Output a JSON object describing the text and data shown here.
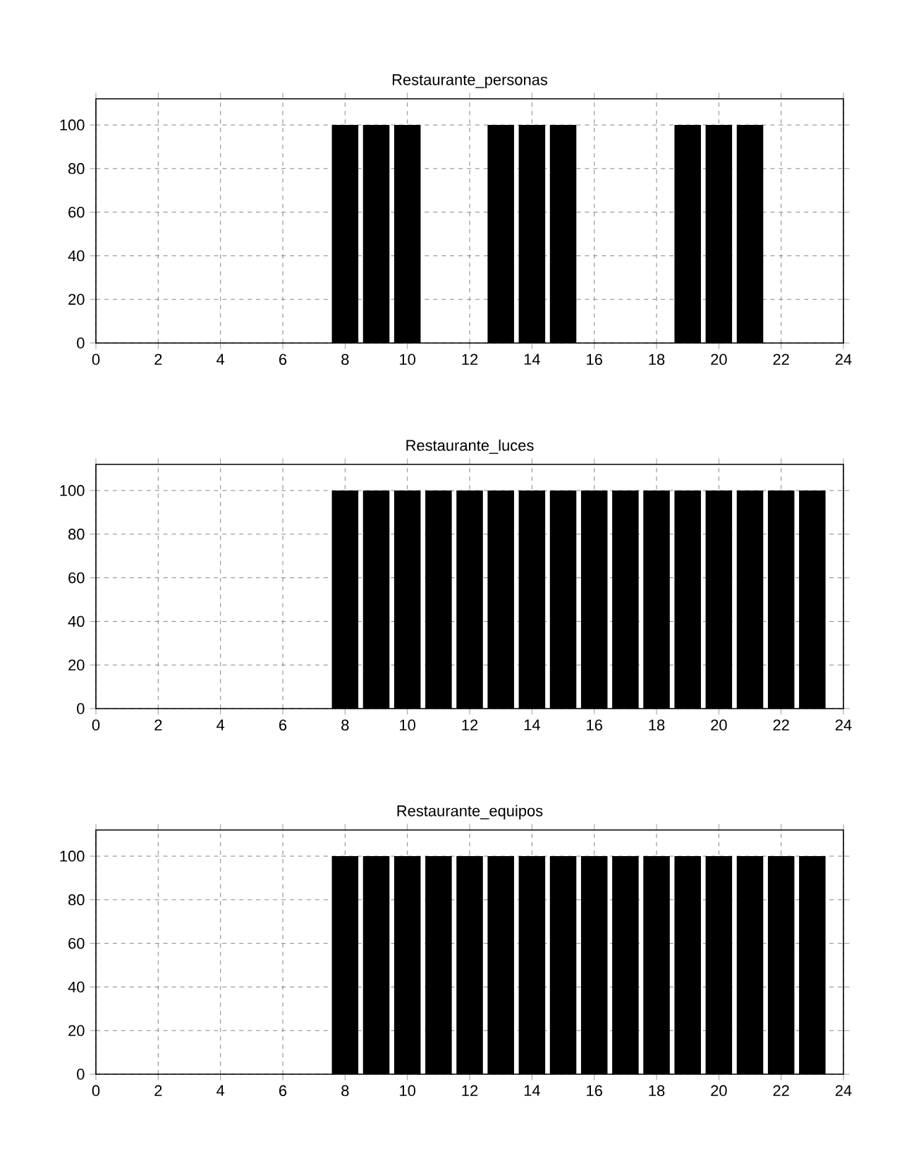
{
  "chart_data": [
    {
      "type": "bar",
      "title": "Restaurante_personas",
      "x": [
        8,
        9,
        10,
        13,
        14,
        15,
        19,
        20,
        21
      ],
      "values": [
        100,
        100,
        100,
        100,
        100,
        100,
        100,
        100,
        100
      ],
      "color": "#000000",
      "xlim": [
        0,
        24
      ],
      "xticks": [
        0,
        2,
        4,
        6,
        8,
        10,
        12,
        14,
        16,
        18,
        20,
        22,
        24
      ],
      "ylim": [
        0,
        112
      ],
      "yticks": [
        0,
        20,
        40,
        60,
        80,
        100
      ],
      "grid": true
    },
    {
      "type": "bar",
      "title": "Restaurante_luces",
      "x": [
        8,
        9,
        10,
        11,
        12,
        13,
        14,
        15,
        16,
        17,
        18,
        19,
        20,
        21,
        22,
        23
      ],
      "values": [
        100,
        100,
        100,
        100,
        100,
        100,
        100,
        100,
        100,
        100,
        100,
        100,
        100,
        100,
        100,
        100
      ],
      "color": "#000000",
      "xlim": [
        0,
        24
      ],
      "xticks": [
        0,
        2,
        4,
        6,
        8,
        10,
        12,
        14,
        16,
        18,
        20,
        22,
        24
      ],
      "ylim": [
        0,
        112
      ],
      "yticks": [
        0,
        20,
        40,
        60,
        80,
        100
      ],
      "grid": true
    },
    {
      "type": "bar",
      "title": "Restaurante_equipos",
      "x": [
        8,
        9,
        10,
        11,
        12,
        13,
        14,
        15,
        16,
        17,
        18,
        19,
        20,
        21,
        22,
        23
      ],
      "values": [
        100,
        100,
        100,
        100,
        100,
        100,
        100,
        100,
        100,
        100,
        100,
        100,
        100,
        100,
        100,
        100
      ],
      "color": "#000000",
      "xlim": [
        0,
        24
      ],
      "xticks": [
        0,
        2,
        4,
        6,
        8,
        10,
        12,
        14,
        16,
        18,
        20,
        22,
        24
      ],
      "ylim": [
        0,
        112
      ],
      "yticks": [
        0,
        20,
        40,
        60,
        80,
        100
      ],
      "grid": true
    }
  ]
}
